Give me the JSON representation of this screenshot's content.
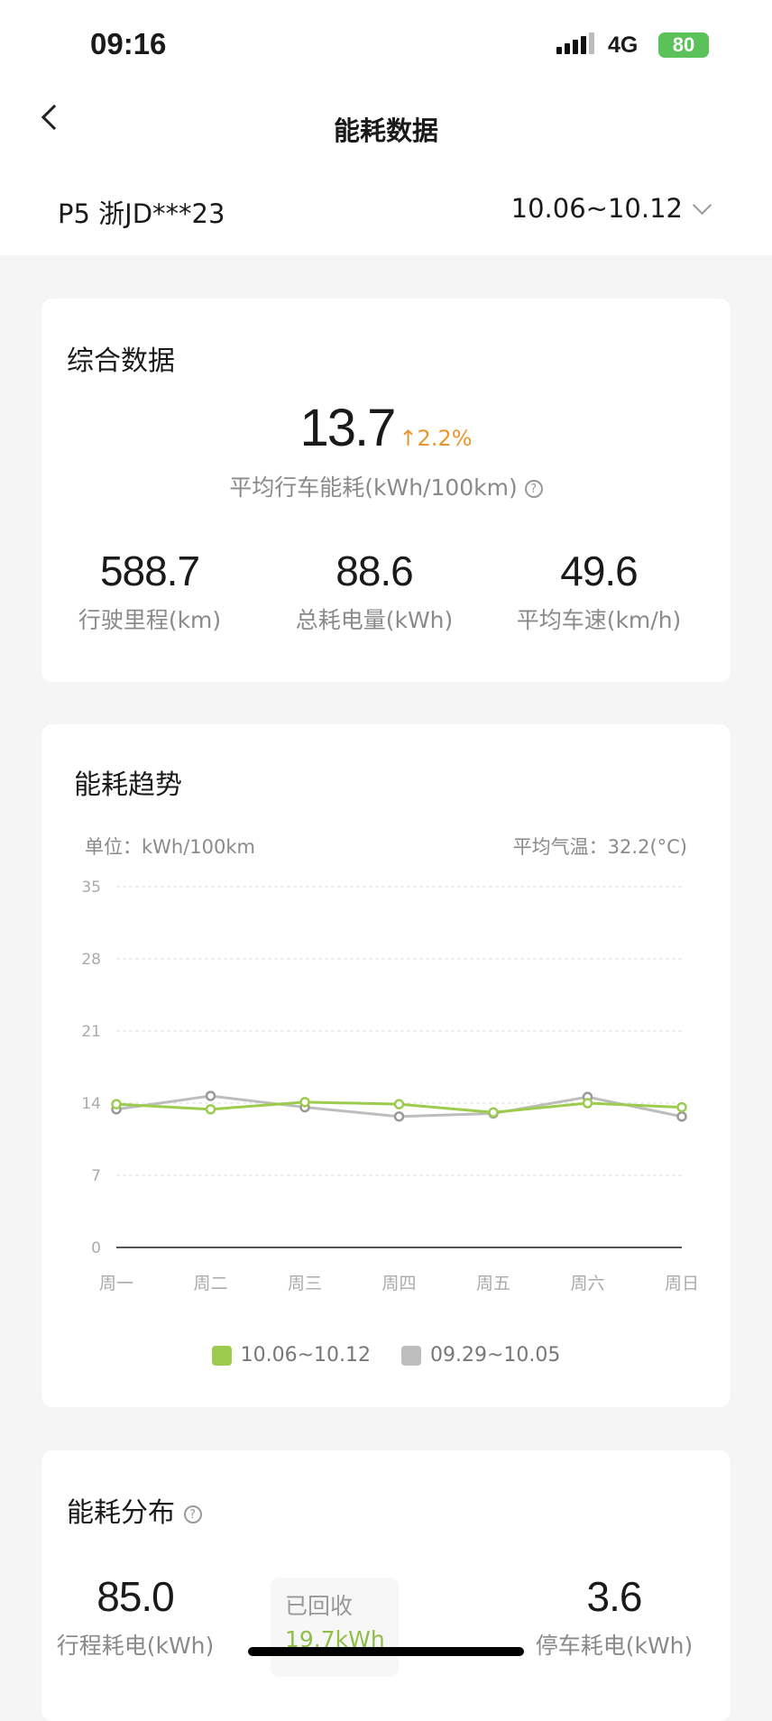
{
  "status_bar": {
    "time": "09:16",
    "network": "4G",
    "battery": "80"
  },
  "header": {
    "title": "能耗数据",
    "vehicle": "P5 浙JD***23",
    "date_range": "10.06~10.12"
  },
  "summary": {
    "title": "综合数据",
    "avg_consumption": "13.7",
    "change": "2.2%",
    "change_direction": "up",
    "avg_label": "平均行车能耗(kWh/100km)",
    "stats": [
      {
        "value": "588.7",
        "label": "行驶里程(km)"
      },
      {
        "value": "88.6",
        "label": "总耗电量(kWh)"
      },
      {
        "value": "49.6",
        "label": "平均车速(km/h)"
      }
    ]
  },
  "trend": {
    "title": "能耗趋势",
    "unit": "单位：kWh/100km",
    "avg_temp": "平均气温：32.2(°C)"
  },
  "chart_data": {
    "type": "line",
    "categories": [
      "周一",
      "周二",
      "周三",
      "周四",
      "周五",
      "周六",
      "周日"
    ],
    "ylim": [
      0,
      35
    ],
    "yticks": [
      "0",
      "7",
      "14",
      "21",
      "28",
      "35"
    ],
    "grid": true,
    "legend": "bottom",
    "series": [
      {
        "name": "10.06~10.12",
        "color": "#9ccb4e",
        "values": [
          13.9,
          13.4,
          14.1,
          13.9,
          13.1,
          14.0,
          13.6
        ]
      },
      {
        "name": "09.29~10.05",
        "color": "#bdbdbd",
        "values": [
          13.4,
          14.7,
          13.6,
          12.7,
          13.0,
          14.6,
          12.7
        ]
      }
    ]
  },
  "distribution": {
    "title": "能耗分布",
    "trip_value": "85.0",
    "trip_label": "行程耗电(kWh)",
    "recovered_label": "已回收",
    "recovered_value": "19.7kWh",
    "park_value": "3.6",
    "park_label": "停车耗电(kWh)"
  }
}
